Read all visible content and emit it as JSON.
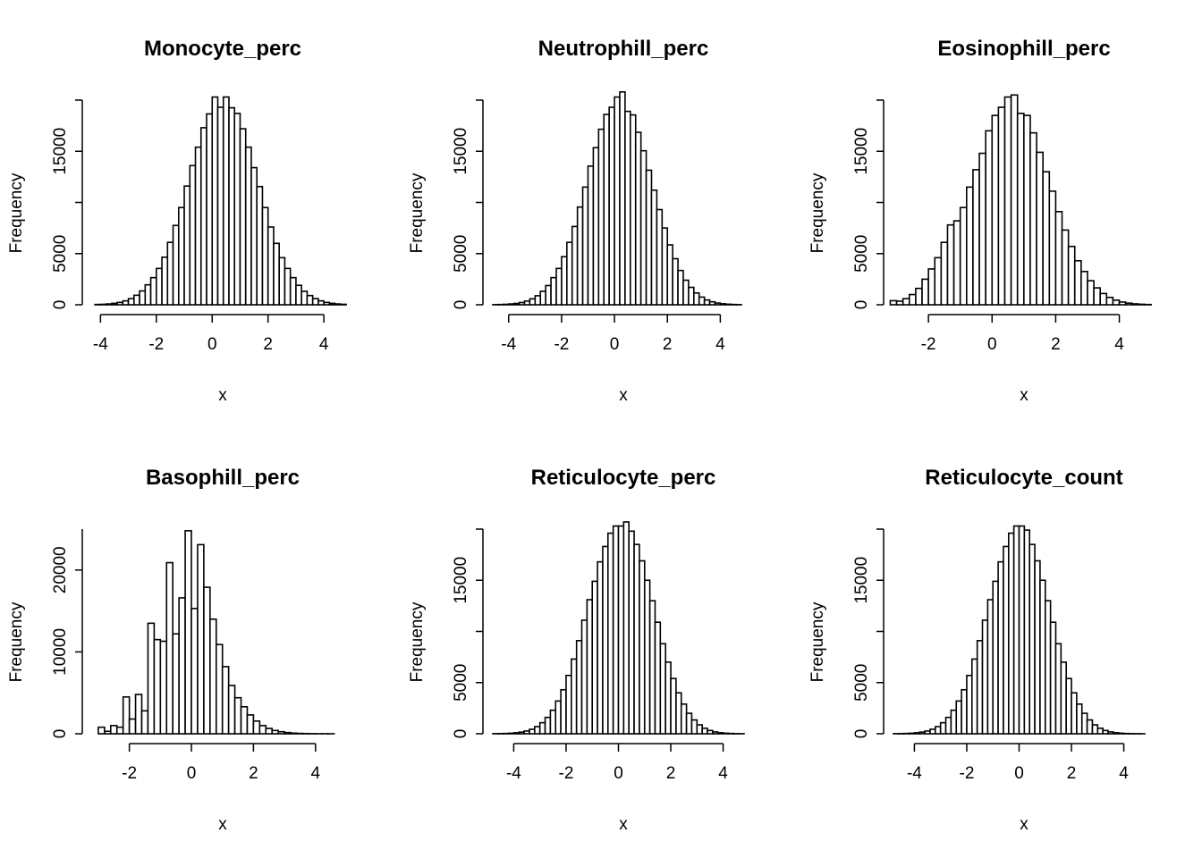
{
  "figure": {
    "layout": "2x3 grid of histograms"
  },
  "chart_data": [
    {
      "type": "bar",
      "title": "Monocyte_perc",
      "xlabel": "x",
      "ylabel": "Frequency",
      "xlim": [
        -4.3,
        4.7
      ],
      "ylim": [
        0,
        20000
      ],
      "xticks": [
        -4,
        -2,
        0,
        2,
        4
      ],
      "yticks": [
        0,
        5000,
        15000
      ],
      "bin_width": 0.2,
      "bin_start": -4.2,
      "values": [
        30,
        45,
        80,
        140,
        230,
        380,
        600,
        930,
        1350,
        1950,
        2650,
        3550,
        4650,
        6100,
        7750,
        9500,
        11600,
        13600,
        15400,
        17300,
        18650,
        20300,
        19300,
        20300,
        19250,
        18700,
        17200,
        15400,
        13400,
        11550,
        9500,
        7600,
        6000,
        4600,
        3550,
        2650,
        1900,
        1320,
        900,
        600,
        380,
        230,
        140,
        80,
        45,
        28,
        14,
        8
      ]
    },
    {
      "type": "bar",
      "title": "Neutrophill_perc",
      "xlabel": "x",
      "ylabel": "Frequency",
      "xlim": [
        -4.6,
        4.9
      ],
      "ylim": [
        0,
        20000
      ],
      "xticks": [
        -4,
        -2,
        0,
        2,
        4
      ],
      "yticks": [
        0,
        5000,
        15000
      ],
      "bin_width": 0.2,
      "bin_start": -4.6,
      "values": [
        15,
        25,
        45,
        80,
        130,
        220,
        360,
        580,
        880,
        1320,
        1880,
        2650,
        3550,
        4700,
        6100,
        7650,
        9550,
        11500,
        13550,
        15350,
        17150,
        18600,
        19300,
        20300,
        20800,
        18900,
        18550,
        16850,
        15050,
        13150,
        11200,
        9300,
        7500,
        5850,
        4500,
        3350,
        2400,
        1700,
        1150,
        750,
        470,
        290,
        170,
        100,
        55,
        30,
        15
      ]
    },
    {
      "type": "bar",
      "title": "Eosinophill_perc",
      "xlabel": "x",
      "ylabel": "Frequency",
      "xlim": [
        -3.1,
        4.8
      ],
      "ylim": [
        0,
        20000
      ],
      "xticks": [
        -2,
        0,
        2,
        4
      ],
      "yticks": [
        0,
        5000,
        15000
      ],
      "bin_width": 0.2,
      "bin_start": -3.2,
      "values": [
        400,
        350,
        600,
        1000,
        1600,
        2500,
        3500,
        4600,
        6100,
        7800,
        8200,
        9500,
        11500,
        13200,
        14800,
        17000,
        18500,
        19300,
        20300,
        20500,
        18700,
        18500,
        16800,
        14900,
        13000,
        11100,
        9100,
        7300,
        5700,
        4300,
        3250,
        2350,
        1650,
        1100,
        720,
        450,
        270,
        160,
        90,
        50,
        25,
        14,
        8,
        4,
        2,
        1,
        0
      ]
    },
    {
      "type": "bar",
      "title": "Basophill_perc",
      "xlabel": "x",
      "ylabel": "Frequency",
      "xlim": [
        -3.2,
        4.9
      ],
      "ylim": [
        0,
        25000
      ],
      "xticks": [
        -2,
        0,
        2,
        4
      ],
      "yticks": [
        0,
        10000,
        20000
      ],
      "bin_width": 0.2,
      "bin_start": -3.0,
      "values": [
        800,
        300,
        1000,
        800,
        4500,
        1800,
        4800,
        2800,
        13500,
        11500,
        11300,
        20900,
        12200,
        16600,
        24800,
        15300,
        23100,
        17900,
        14000,
        10900,
        8200,
        5900,
        4400,
        3300,
        2300,
        1550,
        1000,
        650,
        400,
        250,
        150,
        80,
        45,
        25,
        12,
        6,
        3,
        2
      ]
    },
    {
      "type": "bar",
      "title": "Reticulocyte_perc",
      "xlabel": "x",
      "ylabel": "Frequency",
      "xlim": [
        -4.8,
        4.8
      ],
      "ylim": [
        0,
        20000
      ],
      "xticks": [
        -4,
        -2,
        0,
        2,
        4
      ],
      "yticks": [
        0,
        5000,
        15000
      ],
      "bin_width": 0.2,
      "bin_start": -4.8,
      "values": [
        10,
        18,
        30,
        55,
        95,
        160,
        270,
        440,
        700,
        1080,
        1600,
        2300,
        3200,
        4300,
        5700,
        7300,
        9100,
        11100,
        13100,
        14900,
        16800,
        18300,
        19600,
        20300,
        20300,
        20700,
        19800,
        18500,
        16900,
        15000,
        13000,
        10900,
        8800,
        7000,
        5400,
        4000,
        2900,
        2000,
        1350,
        870,
        540,
        320,
        180,
        100,
        55,
        28,
        14,
        7
      ]
    },
    {
      "type": "bar",
      "title": "Reticulocyte_count",
      "xlabel": "x",
      "ylabel": "Frequency",
      "xlim": [
        -4.8,
        4.8
      ],
      "ylim": [
        0,
        20000
      ],
      "xticks": [
        -4,
        -2,
        0,
        2,
        4
      ],
      "yticks": [
        0,
        5000,
        15000
      ],
      "bin_width": 0.2,
      "bin_start": -4.8,
      "values": [
        10,
        18,
        30,
        55,
        95,
        160,
        270,
        440,
        700,
        1080,
        1600,
        2300,
        3200,
        4300,
        5700,
        7300,
        9100,
        11100,
        13100,
        14900,
        16800,
        18300,
        19600,
        20300,
        20300,
        19900,
        18500,
        16900,
        15000,
        13000,
        10900,
        8800,
        7000,
        5400,
        4000,
        2900,
        2000,
        1350,
        870,
        540,
        320,
        180,
        100,
        55,
        28,
        14,
        7,
        3
      ]
    }
  ]
}
